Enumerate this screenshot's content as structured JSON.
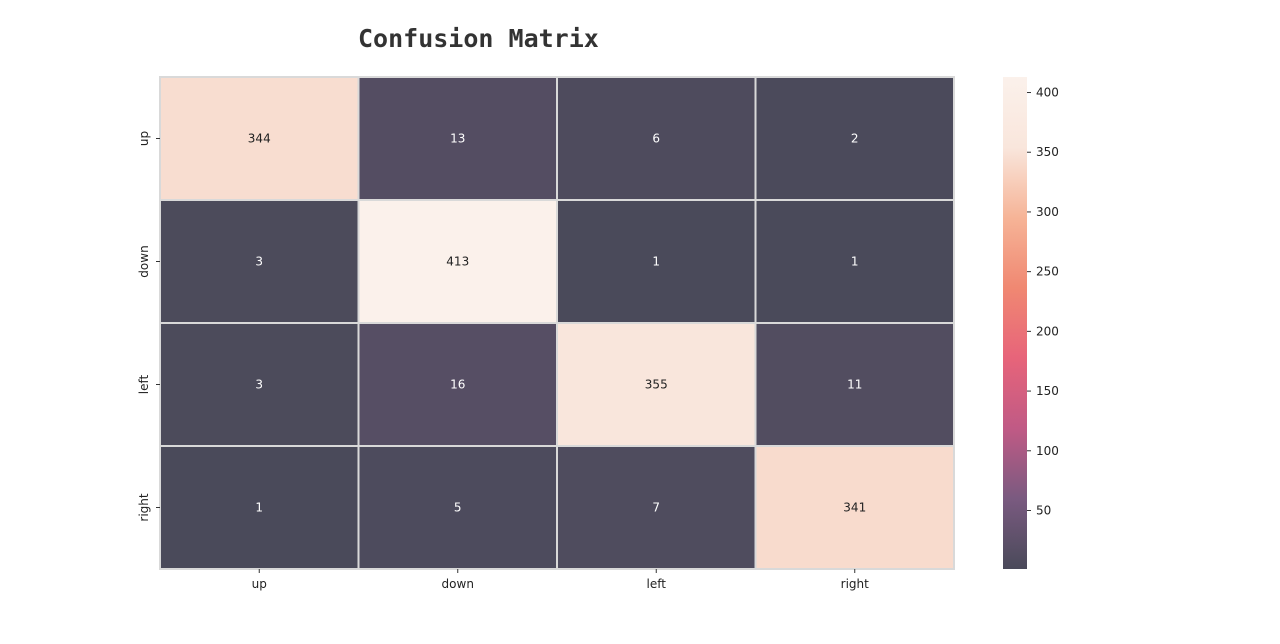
{
  "chart_data": {
    "type": "heatmap",
    "title": "Confusion Matrix",
    "xlabel": "",
    "ylabel": "",
    "row_labels": [
      "up",
      "down",
      "left",
      "right"
    ],
    "col_labels": [
      "up",
      "down",
      "left",
      "right"
    ],
    "values": [
      [
        344,
        13,
        6,
        2
      ],
      [
        3,
        413,
        1,
        1
      ],
      [
        3,
        16,
        355,
        11
      ],
      [
        1,
        5,
        7,
        341
      ]
    ],
    "colorbar": {
      "min": 1,
      "max": 413,
      "ticks": [
        50,
        100,
        150,
        200,
        250,
        300,
        350,
        400
      ],
      "colors": [
        "#4a4a5a",
        "#7a5a80",
        "#c05a85",
        "#e7647a",
        "#f08872",
        "#f6b497",
        "#f9e6dc",
        "#fbf1eb"
      ]
    },
    "cell_border_color": "#d9d9d9",
    "annotation_text_dark": "#222222",
    "annotation_text_light": "#ffffff"
  }
}
